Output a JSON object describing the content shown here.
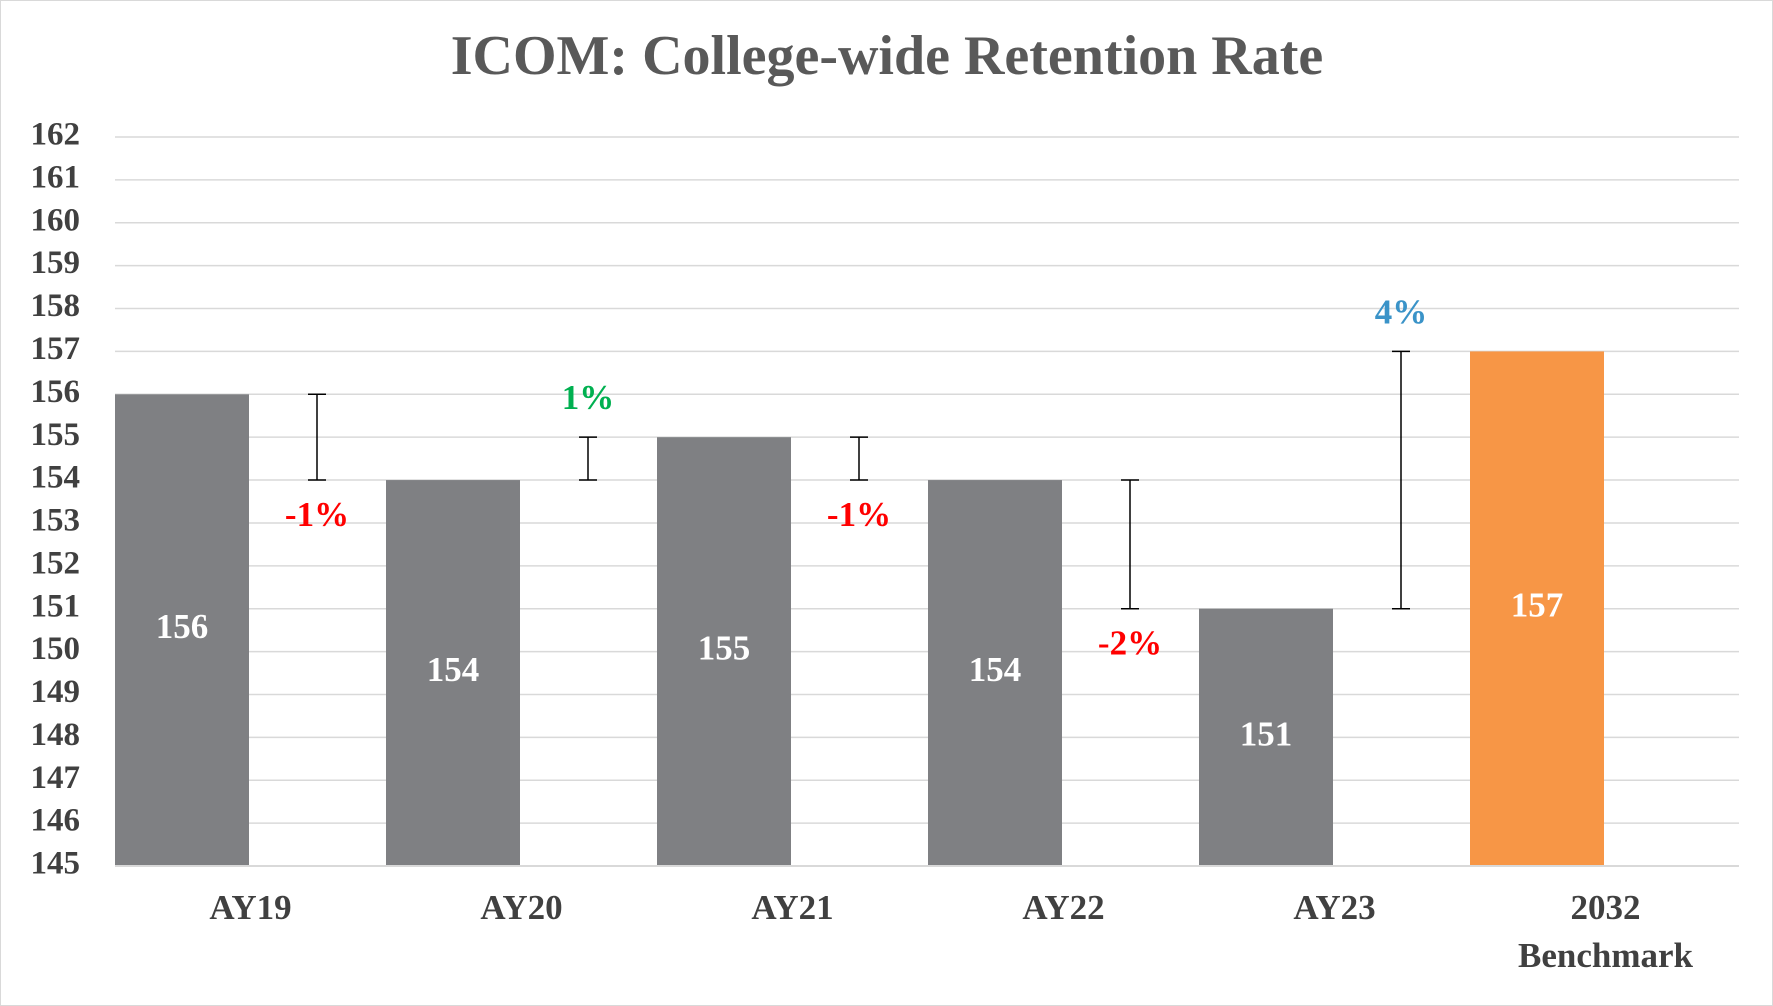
{
  "chart_data": {
    "type": "bar",
    "title": "ICOM: College-wide Retention Rate",
    "categories": [
      "AY19",
      "AY20",
      "AY21",
      "AY22",
      "AY23",
      "2032 Benchmark"
    ],
    "values": [
      156,
      154,
      155,
      154,
      151,
      157
    ],
    "colors": [
      "#7f8083",
      "#7f8083",
      "#7f8083",
      "#7f8083",
      "#7f8083",
      "#f79646"
    ],
    "changes": {
      "values": [
        -1,
        1,
        -1,
        -2,
        4
      ],
      "value_labels": [
        "-1%",
        "1%",
        "-1%",
        "-2%",
        "4%"
      ],
      "colors": [
        "#ff0000",
        "#00b050",
        "#ff0000",
        "#ff0000",
        "#3a93c8"
      ]
    },
    "ylim": [
      145,
      162
    ],
    "yticks": [
      145,
      146,
      147,
      148,
      149,
      150,
      151,
      152,
      153,
      154,
      155,
      156,
      157,
      158,
      159,
      160,
      161,
      162
    ],
    "grid": true
  }
}
